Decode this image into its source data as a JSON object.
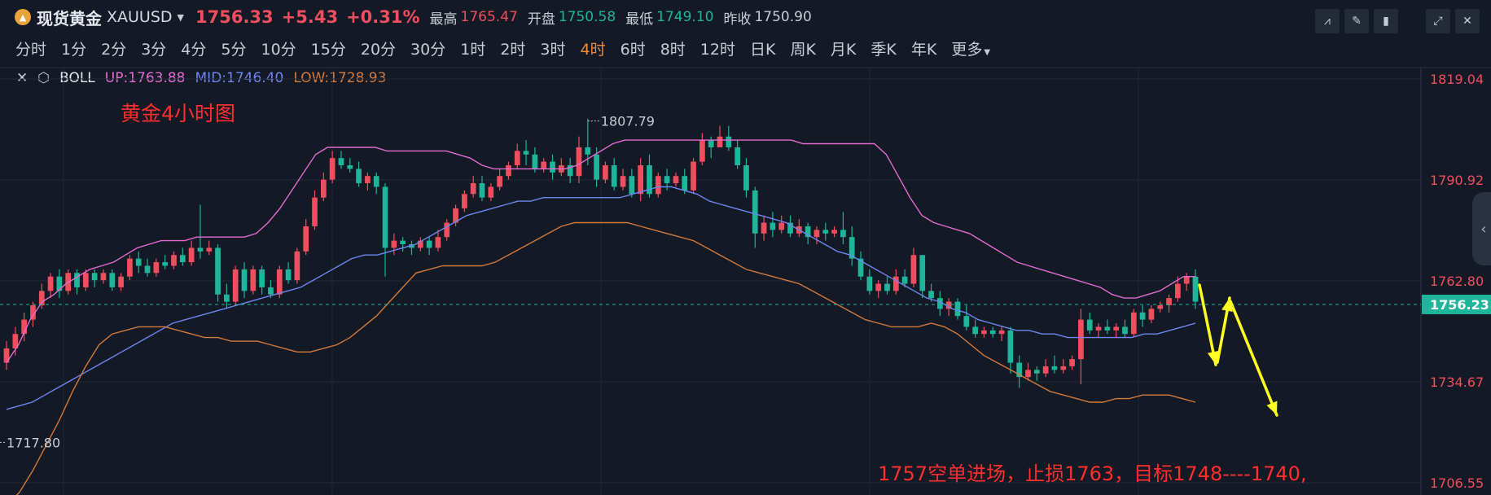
{
  "header": {
    "name": "现货黄金",
    "code": "XAUUSD",
    "price": "1756.33",
    "change": "+5.43",
    "change_pct": "+0.31%",
    "stats": [
      {
        "label": "最高",
        "value": "1765.47",
        "color": "#ee4e5e"
      },
      {
        "label": "开盘",
        "value": "1750.58",
        "color": "#1fb59b"
      },
      {
        "label": "最低",
        "value": "1749.10",
        "color": "#1fb59b"
      },
      {
        "label": "昨收",
        "value": "1750.90",
        "color": "#c8ccd4"
      }
    ]
  },
  "periods": [
    "分时",
    "1分",
    "2分",
    "3分",
    "4分",
    "5分",
    "10分",
    "15分",
    "20分",
    "30分",
    "1时",
    "2时",
    "3时",
    "4时",
    "6时",
    "8时",
    "12时",
    "日K",
    "周K",
    "月K",
    "季K",
    "年K",
    "更多"
  ],
  "active_period": "4时",
  "toolbar_icons": [
    "indicator-icon",
    "draw-icon",
    "candle-type-icon",
    "fullscreen-icon",
    "close-icon"
  ],
  "indicator": {
    "name": "BOLL",
    "up": "UP:1763.88",
    "mid": "MID:1746.40",
    "low": "LOW:1728.93"
  },
  "colors": {
    "up_candle": "#ee4e5e",
    "down_candle": "#1fb59b",
    "boll_up": "#e36bd0",
    "boll_mid": "#6f86f0",
    "boll_low": "#d4793c",
    "annotation": "#ff2d2d",
    "arrow": "#ffff22",
    "background": "#131a26"
  },
  "chart_data": {
    "type": "candlestick",
    "title": "黄金4小时图",
    "y_ticks": [
      1819.04,
      1790.92,
      1762.8,
      1734.67,
      1706.55
    ],
    "ylim": [
      1706.55,
      1819.04
    ],
    "current_price": 1756.23,
    "high_marker": 1807.79,
    "low_marker": 1717.8,
    "annotation": "1757空单进场，止损1763，目标1748----1740,",
    "boll_up": [
      1740,
      1745,
      1752,
      1757,
      1759,
      1762,
      1764,
      1766,
      1767,
      1768,
      1770,
      1772,
      1773,
      1774,
      1774,
      1774,
      1775,
      1775,
      1775,
      1775,
      1775,
      1776,
      1779,
      1783,
      1788,
      1793,
      1798,
      1800,
      1800,
      1800,
      1800,
      1800,
      1799,
      1799,
      1799,
      1799,
      1799,
      1799,
      1798,
      1797,
      1795,
      1794,
      1794,
      1794,
      1794,
      1794,
      1794,
      1794,
      1795,
      1797,
      1799,
      1801,
      1802,
      1802,
      1802,
      1802,
      1802,
      1802,
      1802,
      1802,
      1802,
      1802,
      1802,
      1802,
      1802,
      1802,
      1802,
      1801,
      1801,
      1801,
      1801,
      1801,
      1801,
      1801,
      1798,
      1792,
      1786,
      1781,
      1779,
      1778,
      1777,
      1776,
      1774,
      1772,
      1770,
      1768,
      1767,
      1766,
      1765,
      1764,
      1763,
      1762,
      1761,
      1759,
      1758,
      1758,
      1759,
      1760,
      1762,
      1764,
      1764
    ],
    "boll_mid": [
      1727,
      1728,
      1729,
      1731,
      1733,
      1735,
      1737,
      1739,
      1741,
      1743,
      1745,
      1747,
      1749,
      1751,
      1752,
      1753,
      1754,
      1755,
      1756,
      1757,
      1758,
      1759,
      1760,
      1761,
      1763,
      1765,
      1767,
      1769,
      1770,
      1770,
      1771,
      1772,
      1773,
      1775,
      1777,
      1779,
      1781,
      1782,
      1783,
      1784,
      1785,
      1785,
      1786,
      1786,
      1786,
      1786,
      1786,
      1786,
      1786,
      1787,
      1788,
      1789,
      1789,
      1788,
      1787,
      1785,
      1784,
      1783,
      1782,
      1781,
      1780,
      1779,
      1777,
      1775,
      1773,
      1771,
      1770,
      1768,
      1766,
      1764,
      1762,
      1760,
      1758,
      1757,
      1755,
      1754,
      1752,
      1751,
      1750,
      1749,
      1749,
      1748,
      1748,
      1747,
      1747,
      1747,
      1747,
      1747,
      1747,
      1748,
      1748,
      1749,
      1750,
      1751
    ],
    "boll_low": [
      1700,
      1704,
      1710,
      1717,
      1724,
      1732,
      1739,
      1745,
      1748,
      1749,
      1750,
      1750,
      1750,
      1749,
      1748,
      1747,
      1747,
      1746,
      1746,
      1746,
      1745,
      1744,
      1743,
      1743,
      1744,
      1745,
      1747,
      1750,
      1753,
      1757,
      1761,
      1765,
      1766,
      1767,
      1767,
      1767,
      1767,
      1768,
      1770,
      1772,
      1774,
      1776,
      1778,
      1779,
      1779,
      1779,
      1779,
      1779,
      1778,
      1777,
      1776,
      1775,
      1774,
      1772,
      1770,
      1768,
      1766,
      1765,
      1764,
      1763,
      1762,
      1760,
      1758,
      1756,
      1754,
      1752,
      1751,
      1750,
      1750,
      1750,
      1751,
      1750,
      1748,
      1745,
      1742,
      1740,
      1738,
      1736,
      1734,
      1732,
      1731,
      1730,
      1729,
      1729,
      1730,
      1730,
      1731,
      1731,
      1731,
      1730,
      1729
    ],
    "candles": [
      [
        1740,
        1744,
        1746,
        1738
      ],
      [
        1744,
        1748,
        1750,
        1742
      ],
      [
        1748,
        1752,
        1754,
        1746
      ],
      [
        1752,
        1756,
        1757,
        1750
      ],
      [
        1756,
        1760,
        1762,
        1755
      ],
      [
        1760,
        1764,
        1765,
        1758
      ],
      [
        1764,
        1760,
        1766,
        1758
      ],
      [
        1760,
        1765,
        1766,
        1759
      ],
      [
        1765,
        1761,
        1766,
        1759
      ],
      [
        1761,
        1765,
        1766,
        1760
      ],
      [
        1765,
        1763,
        1766,
        1761
      ],
      [
        1763,
        1765,
        1766,
        1762
      ],
      [
        1765,
        1761,
        1766,
        1760
      ],
      [
        1761,
        1764,
        1765,
        1760
      ],
      [
        1764,
        1769,
        1770,
        1763
      ],
      [
        1769,
        1767,
        1771,
        1765
      ],
      [
        1767,
        1765,
        1769,
        1764
      ],
      [
        1765,
        1768,
        1769,
        1764
      ],
      [
        1768,
        1767,
        1770,
        1766
      ],
      [
        1767,
        1770,
        1771,
        1766
      ],
      [
        1770,
        1768,
        1772,
        1767
      ],
      [
        1768,
        1772,
        1774,
        1767
      ],
      [
        1772,
        1771,
        1784,
        1769
      ],
      [
        1771,
        1772,
        1774,
        1770
      ],
      [
        1772,
        1759,
        1773,
        1757
      ],
      [
        1759,
        1757,
        1762,
        1755
      ],
      [
        1757,
        1766,
        1767,
        1756
      ],
      [
        1766,
        1760,
        1768,
        1758
      ],
      [
        1760,
        1766,
        1767,
        1759
      ],
      [
        1766,
        1761,
        1767,
        1759
      ],
      [
        1761,
        1759,
        1763,
        1758
      ],
      [
        1759,
        1766,
        1767,
        1758
      ],
      [
        1766,
        1763,
        1768,
        1762
      ],
      [
        1763,
        1771,
        1772,
        1762
      ],
      [
        1771,
        1778,
        1780,
        1770
      ],
      [
        1778,
        1786,
        1788,
        1777
      ],
      [
        1786,
        1791,
        1793,
        1785
      ],
      [
        1791,
        1797,
        1799,
        1790
      ],
      [
        1797,
        1795,
        1799,
        1794
      ],
      [
        1795,
        1794,
        1797,
        1793
      ],
      [
        1794,
        1790,
        1796,
        1789
      ],
      [
        1790,
        1792,
        1793,
        1788
      ],
      [
        1792,
        1789,
        1793,
        1787
      ],
      [
        1789,
        1772,
        1790,
        1764
      ],
      [
        1772,
        1774,
        1776,
        1770
      ],
      [
        1774,
        1773,
        1775,
        1771
      ],
      [
        1773,
        1772,
        1774,
        1770
      ],
      [
        1772,
        1774,
        1775,
        1771
      ],
      [
        1774,
        1772,
        1775,
        1770
      ],
      [
        1772,
        1775,
        1777,
        1771
      ],
      [
        1775,
        1779,
        1780,
        1774
      ],
      [
        1779,
        1783,
        1784,
        1778
      ],
      [
        1783,
        1787,
        1788,
        1782
      ],
      [
        1787,
        1790,
        1792,
        1786
      ],
      [
        1790,
        1786,
        1792,
        1785
      ],
      [
        1786,
        1789,
        1790,
        1785
      ],
      [
        1789,
        1792,
        1794,
        1788
      ],
      [
        1792,
        1795,
        1796,
        1791
      ],
      [
        1795,
        1799,
        1801,
        1794
      ],
      [
        1799,
        1798,
        1802,
        1795
      ],
      [
        1798,
        1794,
        1800,
        1793
      ],
      [
        1794,
        1796,
        1797,
        1793
      ],
      [
        1796,
        1793,
        1798,
        1791
      ],
      [
        1793,
        1795,
        1797,
        1792
      ],
      [
        1795,
        1792,
        1797,
        1790
      ],
      [
        1792,
        1800,
        1803,
        1790
      ],
      [
        1800,
        1798,
        1808,
        1795
      ],
      [
        1798,
        1791,
        1800,
        1789
      ],
      [
        1791,
        1795,
        1796,
        1790
      ],
      [
        1795,
        1789,
        1797,
        1788
      ],
      [
        1789,
        1792,
        1794,
        1788
      ],
      [
        1792,
        1787,
        1794,
        1786
      ],
      [
        1787,
        1795,
        1797,
        1785
      ],
      [
        1795,
        1787,
        1798,
        1786
      ],
      [
        1787,
        1792,
        1793,
        1786
      ],
      [
        1792,
        1790,
        1794,
        1788
      ],
      [
        1790,
        1792,
        1793,
        1789
      ],
      [
        1792,
        1788,
        1794,
        1787
      ],
      [
        1788,
        1796,
        1797,
        1787
      ],
      [
        1796,
        1802,
        1804,
        1795
      ],
      [
        1802,
        1800,
        1803,
        1797
      ],
      [
        1800,
        1803,
        1806,
        1800
      ],
      [
        1803,
        1800,
        1806,
        1799
      ],
      [
        1800,
        1795,
        1802,
        1794
      ],
      [
        1795,
        1788,
        1797,
        1786
      ],
      [
        1788,
        1776,
        1789,
        1772
      ],
      [
        1776,
        1779,
        1781,
        1774
      ],
      [
        1779,
        1777,
        1782,
        1775
      ],
      [
        1777,
        1779,
        1781,
        1776
      ],
      [
        1779,
        1776,
        1781,
        1775
      ],
      [
        1776,
        1778,
        1780,
        1775
      ],
      [
        1778,
        1775,
        1779,
        1773
      ],
      [
        1775,
        1777,
        1778,
        1773
      ],
      [
        1777,
        1776,
        1779,
        1774
      ],
      [
        1776,
        1777,
        1778,
        1775
      ],
      [
        1777,
        1775,
        1782,
        1773
      ],
      [
        1775,
        1769,
        1778,
        1767
      ],
      [
        1769,
        1764,
        1771,
        1763
      ],
      [
        1764,
        1760,
        1766,
        1759
      ],
      [
        1760,
        1762,
        1763,
        1758
      ],
      [
        1762,
        1760,
        1764,
        1759
      ],
      [
        1760,
        1764,
        1766,
        1759
      ],
      [
        1764,
        1762,
        1766,
        1761
      ],
      [
        1762,
        1770,
        1772,
        1761
      ],
      [
        1770,
        1760,
        1770,
        1758
      ],
      [
        1760,
        1758,
        1762,
        1757
      ],
      [
        1758,
        1755,
        1760,
        1753
      ],
      [
        1755,
        1757,
        1758,
        1753
      ],
      [
        1757,
        1753,
        1758,
        1752
      ],
      [
        1753,
        1750,
        1756,
        1749
      ],
      [
        1750,
        1748,
        1752,
        1747
      ],
      [
        1748,
        1749,
        1750,
        1747
      ],
      [
        1749,
        1748,
        1750,
        1747
      ],
      [
        1748,
        1749,
        1750,
        1746
      ],
      [
        1749,
        1740,
        1750,
        1737
      ],
      [
        1740,
        1736,
        1742,
        1733
      ],
      [
        1736,
        1738,
        1740,
        1735
      ],
      [
        1738,
        1737,
        1739,
        1735
      ],
      [
        1737,
        1739,
        1741,
        1736
      ],
      [
        1739,
        1738,
        1742,
        1737
      ],
      [
        1738,
        1739,
        1741,
        1737
      ],
      [
        1739,
        1741,
        1742,
        1738
      ],
      [
        1741,
        1752,
        1755,
        1734
      ],
      [
        1752,
        1749,
        1754,
        1748
      ],
      [
        1749,
        1750,
        1751,
        1747
      ],
      [
        1750,
        1749,
        1752,
        1748
      ],
      [
        1749,
        1750,
        1751,
        1747
      ],
      [
        1750,
        1748,
        1752,
        1747
      ],
      [
        1748,
        1754,
        1755,
        1747
      ],
      [
        1754,
        1752,
        1756,
        1750
      ],
      [
        1752,
        1755,
        1756,
        1751
      ],
      [
        1755,
        1756,
        1757,
        1754
      ],
      [
        1756,
        1758,
        1759,
        1754
      ],
      [
        1758,
        1762,
        1764,
        1757
      ],
      [
        1762,
        1764,
        1765,
        1760
      ],
      [
        1764,
        1757,
        1766,
        1755
      ]
    ]
  }
}
